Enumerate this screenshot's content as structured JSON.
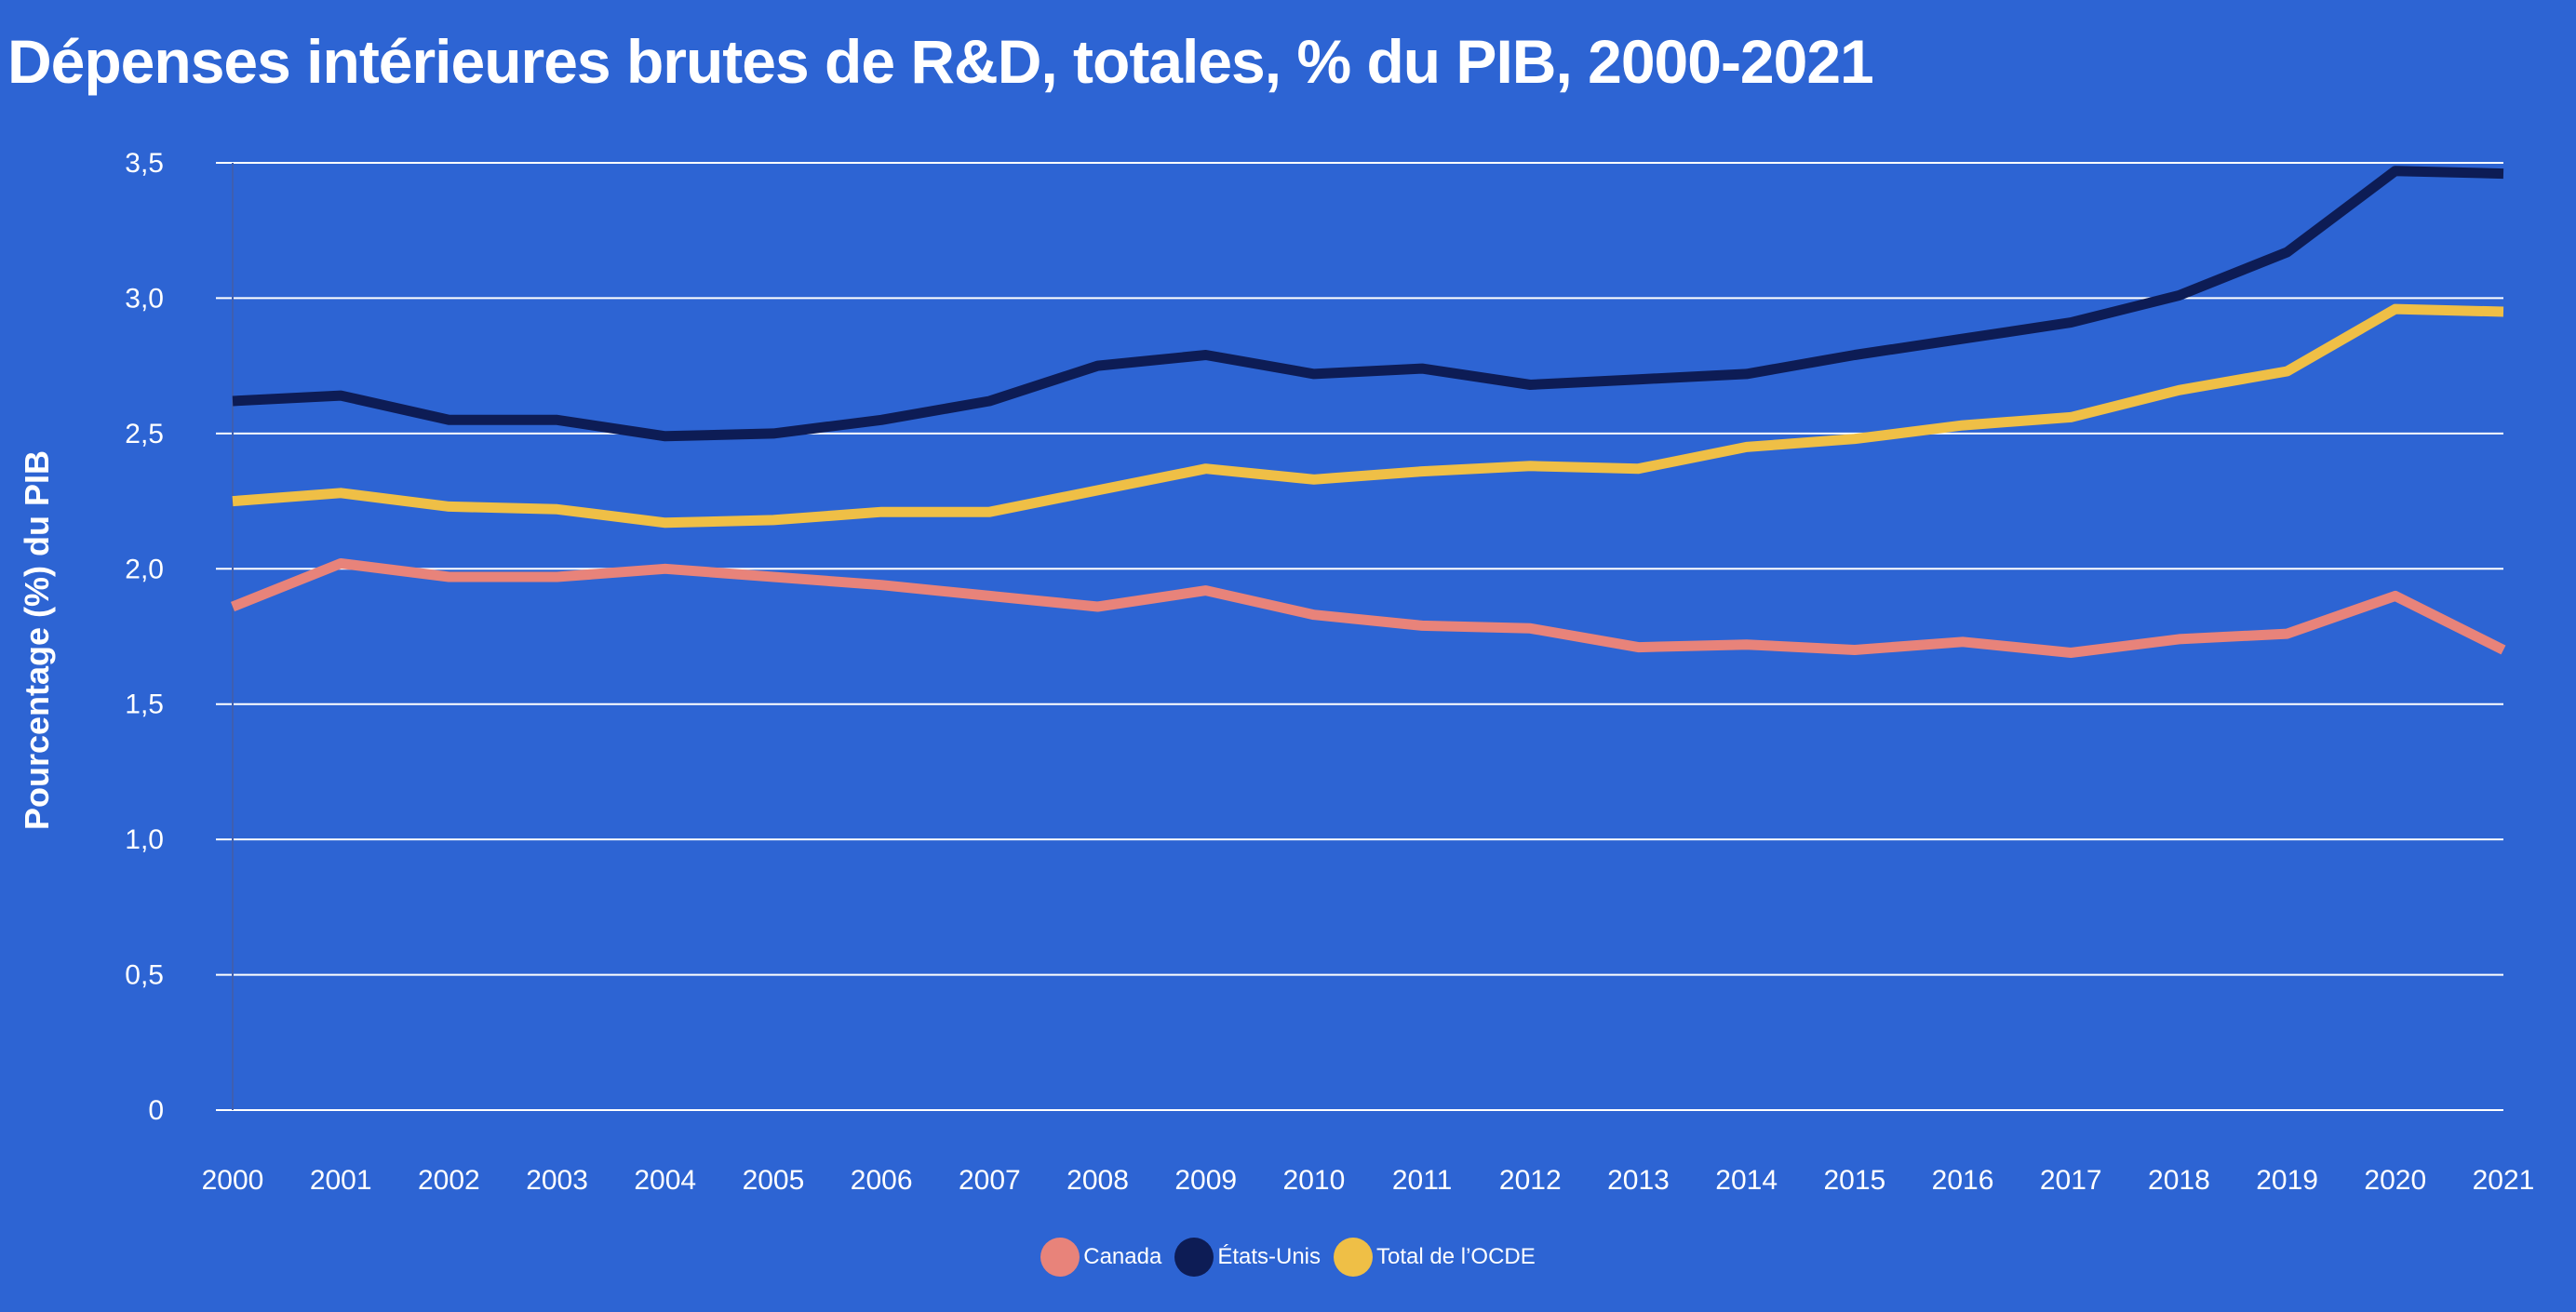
{
  "chart_data": {
    "type": "line",
    "title": "Dépenses intérieures brutes de R&D, totales, % du PIB, 2000-2021",
    "xlabel": "",
    "ylabel": "Pourcentage (%) du PIB",
    "x": [
      "2000",
      "2001",
      "2002",
      "2003",
      "2004",
      "2005",
      "2006",
      "2007",
      "2008",
      "2009",
      "2010",
      "2011",
      "2012",
      "2013",
      "2014",
      "2015",
      "2016",
      "2017",
      "2018",
      "2019",
      "2020",
      "2021"
    ],
    "ylim": [
      0,
      3.5
    ],
    "yticks": [
      0,
      0.5,
      1.0,
      1.5,
      2.0,
      2.5,
      3.0,
      3.5
    ],
    "ytick_labels": [
      "0",
      "0,5",
      "1,0",
      "1,5",
      "2,0",
      "2,5",
      "3,0",
      "3,5"
    ],
    "grid": true,
    "legend_position": "bottom-center",
    "series": [
      {
        "name": "Canada",
        "color": "#e8837a",
        "values": [
          1.86,
          2.02,
          1.97,
          1.97,
          2.0,
          1.97,
          1.94,
          1.9,
          1.86,
          1.92,
          1.83,
          1.79,
          1.78,
          1.71,
          1.72,
          1.7,
          1.73,
          1.69,
          1.74,
          1.76,
          1.9,
          1.7
        ]
      },
      {
        "name": "États-Unis",
        "color": "#0d1c55",
        "values": [
          2.62,
          2.64,
          2.55,
          2.55,
          2.49,
          2.5,
          2.55,
          2.62,
          2.75,
          2.79,
          2.72,
          2.74,
          2.68,
          2.7,
          2.72,
          2.79,
          2.85,
          2.91,
          3.01,
          3.17,
          3.47,
          3.46
        ]
      },
      {
        "name": "Total de l’OCDE",
        "color": "#efbf46",
        "values": [
          2.25,
          2.28,
          2.23,
          2.22,
          2.17,
          2.18,
          2.21,
          2.21,
          2.29,
          2.37,
          2.33,
          2.36,
          2.38,
          2.37,
          2.45,
          2.48,
          2.53,
          2.56,
          2.66,
          2.73,
          2.96,
          2.95
        ]
      }
    ]
  }
}
